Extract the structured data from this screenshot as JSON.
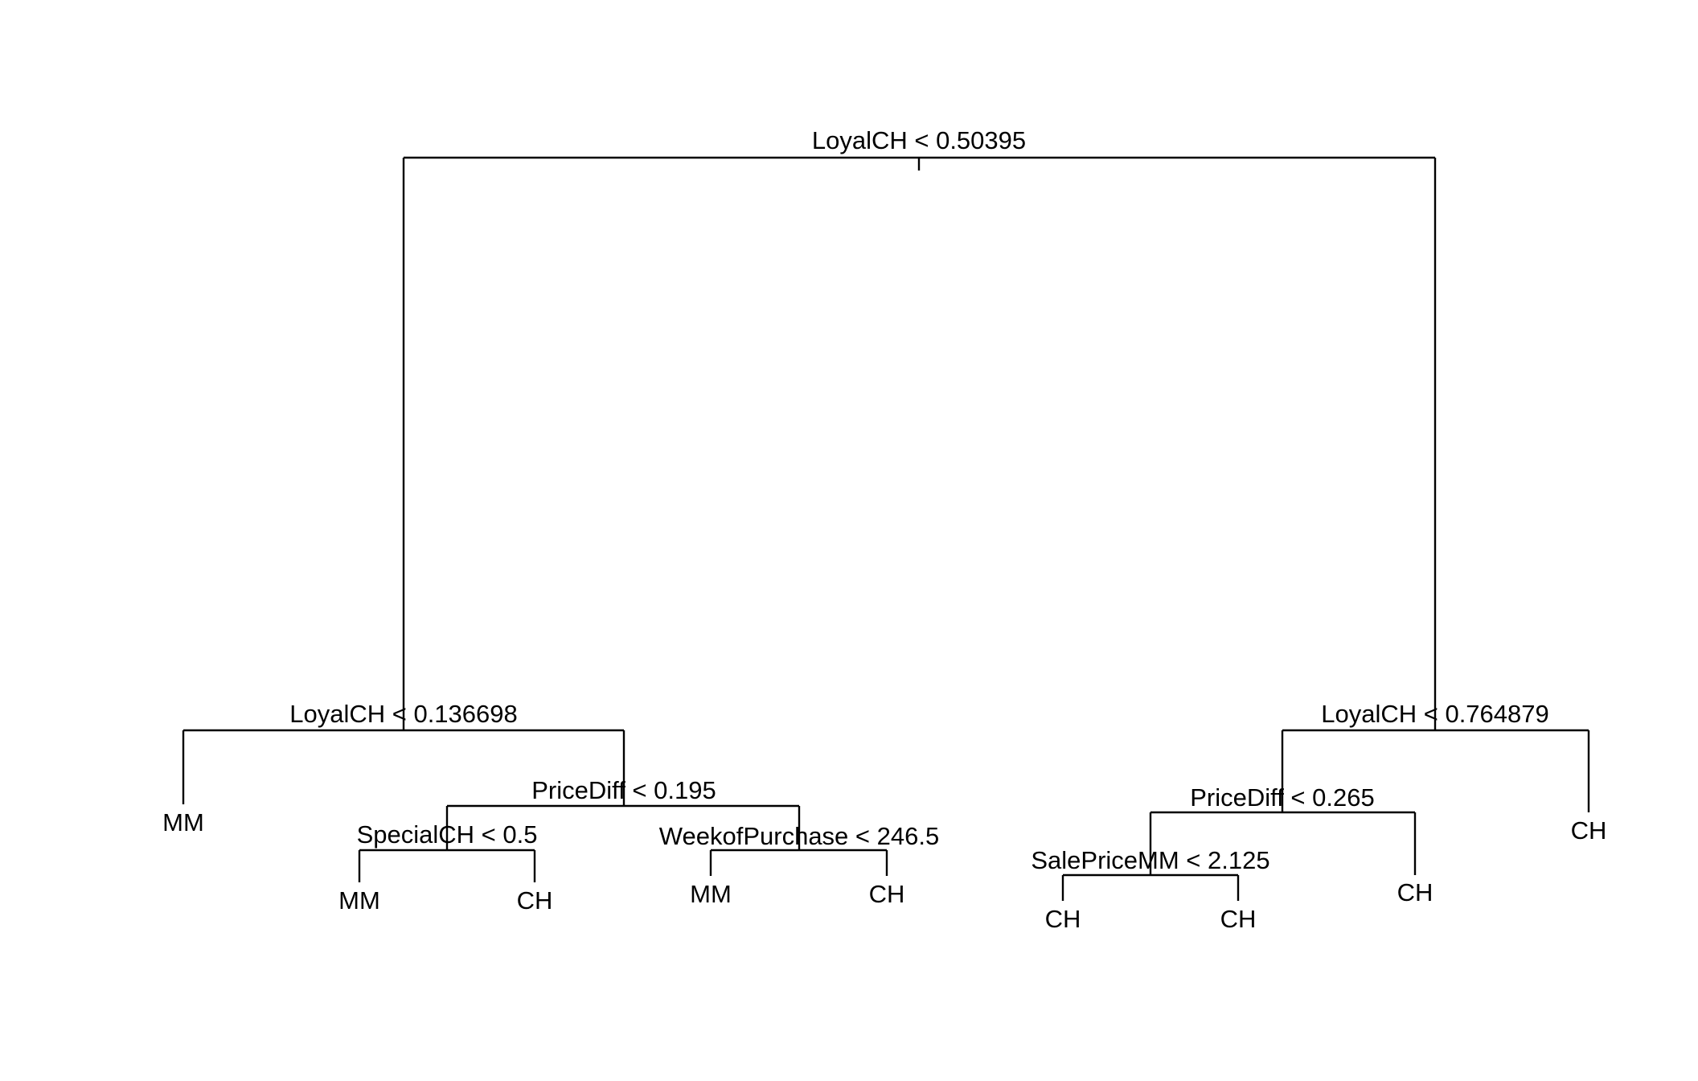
{
  "tree": {
    "splits": [
      {
        "id": "root",
        "label": "LoyalCH < 0.50395"
      },
      {
        "id": "left",
        "label": "LoyalCH < 0.136698"
      },
      {
        "id": "right",
        "label": "LoyalCH < 0.764879"
      },
      {
        "id": "left-price",
        "label": "PriceDiff < 0.195"
      },
      {
        "id": "left-special",
        "label": "SpecialCH < 0.5"
      },
      {
        "id": "left-week",
        "label": "WeekofPurchase < 246.5"
      },
      {
        "id": "right-price",
        "label": "PriceDiff < 0.265"
      },
      {
        "id": "right-sale",
        "label": "SalePriceMM < 2.125"
      }
    ],
    "leaves": [
      {
        "id": "leaf-1",
        "label": "MM"
      },
      {
        "id": "leaf-2",
        "label": "MM"
      },
      {
        "id": "leaf-3",
        "label": "CH"
      },
      {
        "id": "leaf-4",
        "label": "MM"
      },
      {
        "id": "leaf-5",
        "label": "CH"
      },
      {
        "id": "leaf-6",
        "label": "CH"
      },
      {
        "id": "leaf-7",
        "label": "CH"
      },
      {
        "id": "leaf-8",
        "label": "CH"
      },
      {
        "id": "leaf-9",
        "label": "CH"
      }
    ]
  }
}
